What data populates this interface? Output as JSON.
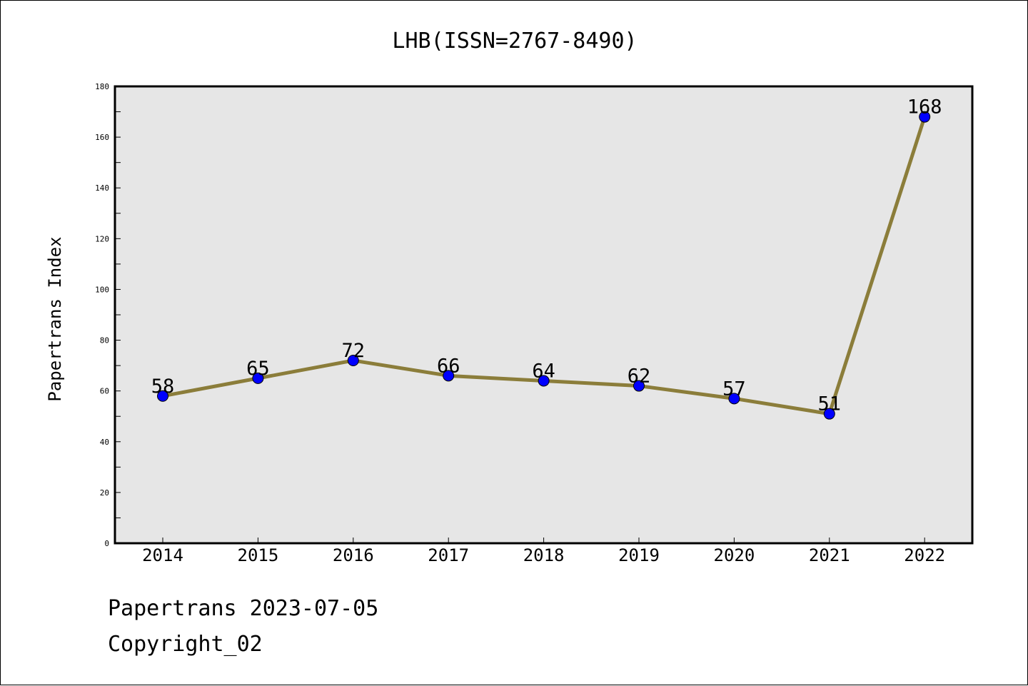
{
  "chart_data": {
    "type": "line",
    "title": "LHB(ISSN=2767-8490)",
    "ylabel": "Papertrans Index",
    "xlabel": "",
    "categories": [
      "2014",
      "2015",
      "2016",
      "2017",
      "2018",
      "2019",
      "2020",
      "2021",
      "2022"
    ],
    "series": [
      {
        "values": [
          58,
          65,
          72,
          66,
          64,
          62,
          57,
          51,
          168
        ]
      }
    ],
    "ylim": [
      0,
      180
    ],
    "yticks": [
      0,
      20,
      40,
      60,
      80,
      100,
      120,
      140,
      160,
      180
    ],
    "grid": false,
    "plot_background": "#e6e6e6",
    "line_color": "#8b7d3a",
    "marker_color": "#0000ff"
  },
  "footer": {
    "date_text": "Papertrans 2023-07-05",
    "copyright_text": "Copyright_02"
  }
}
